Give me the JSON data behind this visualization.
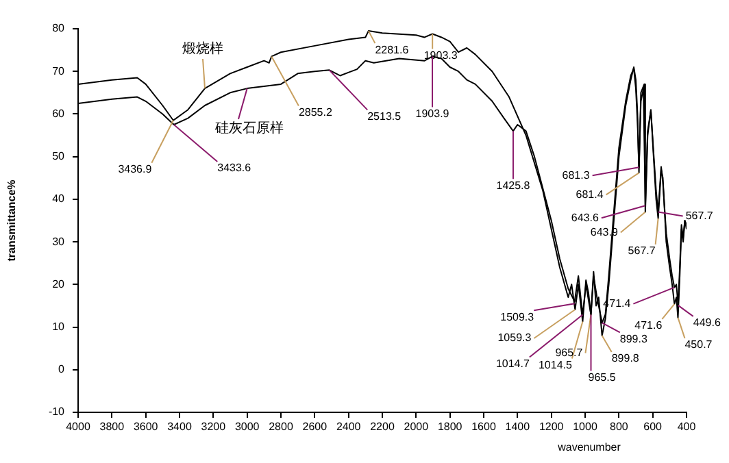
{
  "chart_data": {
    "type": "line",
    "xlabel": "wavenumber",
    "ylabel": "transmittance%",
    "xlim": [
      4000,
      400
    ],
    "xticks": [
      4000,
      3800,
      3600,
      3400,
      3200,
      3000,
      2800,
      2600,
      2400,
      2200,
      2000,
      1800,
      1600,
      1400,
      1200,
      1000,
      800,
      600,
      400
    ],
    "ylim": [
      -10,
      80
    ],
    "yticks": [
      -10,
      0,
      10,
      20,
      30,
      40,
      50,
      60,
      70,
      80
    ],
    "grid": false,
    "legend": false,
    "marker": "none",
    "line_style": "solid",
    "series": [
      {
        "name": "煅烧样",
        "color": "#000000",
        "x": [
          4000,
          3800,
          3650,
          3600,
          3500,
          3436.9,
          3350,
          3250,
          3100,
          3000,
          2900,
          2870,
          2855.2,
          2800,
          2600,
          2400,
          2300,
          2281.6,
          2200,
          2000,
          1950,
          1903.3,
          1850,
          1800,
          1750,
          1700,
          1650,
          1550,
          1450,
          1350,
          1250,
          1200,
          1150,
          1100,
          1080,
          1059.3,
          1040,
          1014.5,
          995,
          980,
          965.7,
          950,
          935,
          920,
          899.8,
          880,
          860,
          830,
          800,
          760,
          730,
          712,
          700,
          690,
          681.4,
          670,
          650,
          643.9,
          630,
          611,
          595,
          580,
          567.7,
          550,
          540,
          520,
          500,
          485,
          471.6,
          460,
          450.7,
          440,
          430,
          420,
          410,
          400
        ],
        "values": [
          67,
          68,
          68.5,
          67,
          62,
          58.5,
          61,
          66,
          69.5,
          71,
          72.5,
          72,
          73.5,
          74.5,
          76,
          77.5,
          78,
          79.5,
          79,
          78.5,
          78,
          78.8,
          78,
          77,
          74.5,
          75.5,
          74,
          70,
          64,
          55,
          42,
          33,
          24,
          17,
          20,
          14.1,
          20,
          11.3,
          21,
          18,
          12.9,
          23,
          15,
          17,
          8,
          12,
          20,
          35,
          50,
          62,
          68,
          71,
          68,
          60,
          46.2,
          65,
          67,
          37,
          55,
          61,
          50,
          40,
          35.5,
          47,
          45,
          30,
          24,
          20,
          15.4,
          17,
          12.2,
          22,
          33,
          30,
          35,
          33
        ]
      },
      {
        "name": "硅灰石原样",
        "color": "#000000",
        "x": [
          4000,
          3800,
          3650,
          3600,
          3500,
          3433.6,
          3350,
          3250,
          3100,
          3000,
          2900,
          2800,
          2700,
          2600,
          2513.5,
          2450,
          2350,
          2300,
          2250,
          2100,
          1950,
          1903.9,
          1850,
          1800,
          1750,
          1700,
          1650,
          1550,
          1480,
          1425.8,
          1400,
          1350,
          1300,
          1200,
          1150,
          1100,
          1062,
          1040,
          1014.7,
          995,
          965.5,
          950,
          930,
          899.3,
          880,
          860,
          830,
          800,
          760,
          730,
          712,
          700,
          690,
          681.3,
          670,
          655,
          643.6,
          630,
          611,
          595,
          580,
          567.7,
          550,
          540,
          520,
          500,
          485,
          471.4,
          460,
          449.6,
          440,
          430,
          420,
          410,
          400
        ],
        "values": [
          62.5,
          63.5,
          64,
          63,
          60,
          57.5,
          59,
          62,
          65,
          66,
          66.5,
          67,
          69.5,
          70,
          70.3,
          69,
          70.5,
          72.5,
          72,
          73,
          72.5,
          73.5,
          73,
          71,
          70,
          68,
          67,
          63,
          59,
          56,
          57.5,
          56,
          50,
          35,
          26,
          19,
          16,
          22,
          12.9,
          20,
          12.9,
          22,
          17,
          11,
          13,
          22,
          37,
          52,
          63,
          69,
          70.7,
          66,
          58,
          47.5,
          63,
          66,
          38.5,
          56,
          60.8,
          51,
          42,
          37,
          47.6,
          44,
          32,
          26,
          22,
          19.3,
          20,
          15.1,
          24,
          34,
          31,
          35,
          34
        ]
      }
    ],
    "annotations": [
      {
        "text": "3436.9",
        "x": 3436.9,
        "y": 58.5
      },
      {
        "text": "3433.6",
        "x": 3433.6,
        "y": 57.5
      },
      {
        "text": "2855.2",
        "x": 2855.2,
        "y": 73.5
      },
      {
        "text": "2513.5",
        "x": 2513.5,
        "y": 70.3
      },
      {
        "text": "2281.6",
        "x": 2281.6,
        "y": 79.5
      },
      {
        "text": "1903.3",
        "x": 1903.3,
        "y": 78.8
      },
      {
        "text": "1903.9",
        "x": 1903.9,
        "y": 73.5
      },
      {
        "text": "1425.8",
        "x": 1425.8,
        "y": 56
      },
      {
        "text": "681.3",
        "x": 681.3,
        "y": 47.5
      },
      {
        "text": "681.4",
        "x": 681.4,
        "y": 46.2
      },
      {
        "text": "643.6",
        "x": 643.6,
        "y": 38.5
      },
      {
        "text": "643.9",
        "x": 643.9,
        "y": 37
      },
      {
        "text": "567.7",
        "x": 567.7,
        "y": 37
      },
      {
        "text": "567.7",
        "x": 567.7,
        "y": 35.5
      },
      {
        "text": "1509.3",
        "x": 1062,
        "y": 15.5
      },
      {
        "text": "1059.3",
        "x": 1059.3,
        "y": 14.1
      },
      {
        "text": "1014.7",
        "x": 1014.7,
        "y": 12.9
      },
      {
        "text": "1014.5",
        "x": 1014.5,
        "y": 11.3
      },
      {
        "text": "965.7",
        "x": 965.7,
        "y": 12.9
      },
      {
        "text": "965.5",
        "x": 965.5,
        "y": 12.9
      },
      {
        "text": "899.3",
        "x": 899.3,
        "y": 11
      },
      {
        "text": "899.8",
        "x": 899.8,
        "y": 8
      },
      {
        "text": "471.4",
        "x": 471.4,
        "y": 19.3
      },
      {
        "text": "471.6",
        "x": 471.6,
        "y": 15.4
      },
      {
        "text": "449.6",
        "x": 449.6,
        "y": 15.1
      },
      {
        "text": "450.7",
        "x": 450.7,
        "y": 12.2
      }
    ]
  }
}
